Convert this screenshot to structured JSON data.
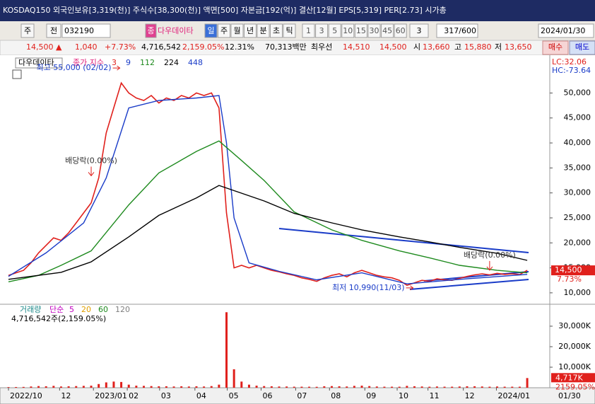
{
  "title_bar": {
    "text": "KOSDAQ150 외국인보유[3,319(천)] 주식수[38,300(천)] 액면[500] 자본금[192(억)] 결산[12월] EPS[5,319] PER[2.73] 시가총"
  },
  "toolbar": {
    "market": "주",
    "prev": "전",
    "code": "032190",
    "mode": "종",
    "name": "다우데이타",
    "periods": [
      "일",
      "주",
      "월",
      "년",
      "분",
      "초",
      "틱"
    ],
    "intervals": [
      "1",
      "3",
      "5",
      "10",
      "15",
      "30",
      "45",
      "60"
    ],
    "count": "3",
    "range": "317/600",
    "date": "2024/01/30"
  },
  "quote": {
    "items": [
      {
        "text": "14,500 ▲",
        "color": "#e0201c"
      },
      {
        "text": "1,040",
        "color": "#e0201c"
      },
      {
        "text": "+7.73%",
        "color": "#e0201c"
      },
      {
        "text": "4,716,542",
        "color": "#000000"
      },
      {
        "text": "2,159.05%",
        "color": "#e0201c"
      },
      {
        "text": "12.31%",
        "color": "#000000"
      },
      {
        "text": "70,313백만",
        "color": "#000000"
      },
      {
        "text": "최우선",
        "color": "#000000"
      },
      {
        "text": "14,510",
        "color": "#e0201c"
      },
      {
        "text": "14,500",
        "color": "#e0201c"
      },
      {
        "text": "시",
        "color": "#000000"
      },
      {
        "text": "13,660",
        "color": "#e0201c"
      },
      {
        "text": "고",
        "color": "#000000"
      },
      {
        "text": "15,880",
        "color": "#e0201c"
      },
      {
        "text": "저",
        "color": "#000000"
      },
      {
        "text": "13,650",
        "color": "#e0201c"
      }
    ],
    "buy": "매수",
    "sell": "매도"
  },
  "chart_data": [
    {
      "type": "line",
      "title": "다우데이타",
      "legend_title": "종가 지수",
      "xlim": [
        0,
        72
      ],
      "ylim": [
        8000,
        57000
      ],
      "yticks": [
        {
          "value": 10000,
          "label": "10,000"
        },
        {
          "value": 15000,
          "label": "15,000"
        },
        {
          "value": 20000,
          "label": "20,000"
        },
        {
          "value": 25000,
          "label": "25,000"
        },
        {
          "value": 30000,
          "label": "30,000"
        },
        {
          "value": 35000,
          "label": "35,000"
        },
        {
          "value": 40000,
          "label": "40,000"
        },
        {
          "value": 45000,
          "label": "45,000"
        },
        {
          "value": 50000,
          "label": "50,000"
        }
      ],
      "xticks": [
        {
          "value": 0,
          "label": "2022/10"
        },
        {
          "value": 6.8,
          "label": "12"
        },
        {
          "value": 11.3,
          "label": "2023/01"
        },
        {
          "value": 15.8,
          "label": "02"
        },
        {
          "value": 20.1,
          "label": "03"
        },
        {
          "value": 24.8,
          "label": "04"
        },
        {
          "value": 29.1,
          "label": "05"
        },
        {
          "value": 33.6,
          "label": "06"
        },
        {
          "value": 38.2,
          "label": "07"
        },
        {
          "value": 42.7,
          "label": "08"
        },
        {
          "value": 47.4,
          "label": "09"
        },
        {
          "value": 51.7,
          "label": "10"
        },
        {
          "value": 55.8,
          "label": "11"
        },
        {
          "value": 60.5,
          "label": "12"
        },
        {
          "value": 64.9,
          "label": "2024/01"
        }
      ],
      "last_x_label": "01/30",
      "series": [
        {
          "name": "3",
          "color": "#e0201c",
          "values": [
            13500,
            14000,
            14500,
            16000,
            18000,
            19500,
            21000,
            20500,
            22000,
            24000,
            26000,
            28000,
            33000,
            42000,
            47000,
            52000,
            50000,
            49000,
            48500,
            49500,
            48000,
            49000,
            48500,
            49500,
            49000,
            50000,
            49500,
            50000,
            47000,
            26000,
            15000,
            15500,
            15000,
            15500,
            15000,
            14500,
            14200,
            13800,
            13500,
            13000,
            12700,
            12300,
            13000,
            13500,
            13800,
            13200,
            14000,
            14500,
            14000,
            13500,
            13200,
            13000,
            12500,
            11500,
            12000,
            12500,
            12300,
            12800,
            12600,
            12500,
            12900,
            13300,
            13600,
            13800,
            13600,
            13900,
            13700,
            13800,
            13650,
            14500
          ]
        },
        {
          "name": "9",
          "color": "#1a3cc8",
          "x": [
            0,
            5,
            10,
            13,
            16,
            20,
            25,
            28,
            29,
            30,
            32,
            36,
            41,
            47,
            53,
            60,
            69
          ],
          "values": [
            13300,
            18000,
            24000,
            33000,
            47000,
            48500,
            49000,
            49500,
            40000,
            25000,
            16000,
            14300,
            12600,
            14000,
            11800,
            12700,
            13700
          ]
        },
        {
          "name": "112",
          "color": "#1e8a1e",
          "x": [
            0,
            4,
            7,
            11,
            16,
            20,
            25,
            28,
            31,
            34,
            38,
            43,
            47,
            52,
            56,
            60,
            65,
            69
          ],
          "values": [
            12200,
            13500,
            15500,
            18400,
            27600,
            34000,
            38300,
            40400,
            36500,
            32500,
            26200,
            22600,
            20500,
            18400,
            17000,
            15500,
            14500,
            14000
          ]
        },
        {
          "name": "224",
          "color": "#000000",
          "x": [
            0,
            7,
            11,
            16,
            20,
            25,
            28,
            34,
            38,
            43,
            47,
            52,
            56,
            60,
            65,
            69
          ],
          "values": [
            12700,
            14100,
            16200,
            21200,
            25500,
            29000,
            31500,
            28400,
            25900,
            24000,
            22600,
            21200,
            20200,
            19100,
            17900,
            16500
          ]
        },
        {
          "name": "448",
          "color": "#1a3cc8",
          "x": [],
          "values": []
        }
      ],
      "annotations": [
        {
          "text": "최고 55,000 (02/02)",
          "x": 15,
          "y": 55000,
          "side": "left"
        },
        {
          "text": "배당락(0.00%)",
          "x": 11,
          "y": 33000,
          "side": "top"
        },
        {
          "text": "배당락(0.00%)",
          "x": 64,
          "y": 14100,
          "side": "top"
        },
        {
          "text": "최저 10,990(11/03)",
          "x": 54,
          "y": 10990,
          "side": "left"
        }
      ],
      "lc_label": "LC:32.06",
      "hc_label": "HC:-73.64",
      "last_label": "14,500",
      "change_label": "7.73%"
    },
    {
      "type": "bar",
      "title": "거래량",
      "ma_title": "단순",
      "xlim": [
        0,
        72
      ],
      "ylim": [
        0,
        40000
      ],
      "yticks": [
        {
          "value": 10000,
          "label": "10,000K"
        },
        {
          "value": 20000,
          "label": "20,000K"
        },
        {
          "value": 30000,
          "label": "30,000K"
        }
      ],
      "ma_legend": [
        {
          "name": "5",
          "color": "#c000c0"
        },
        {
          "name": "20",
          "color": "#e0a000"
        },
        {
          "name": "60",
          "color": "#1e8a1e"
        },
        {
          "name": "120",
          "color": "#808080"
        }
      ],
      "summary": "4,716,542주(2,159.05%)",
      "color": "#e0201c",
      "values": [
        300,
        350,
        400,
        600,
        800,
        700,
        900,
        600,
        700,
        800,
        900,
        1000,
        1800,
        2600,
        3000,
        2800,
        1500,
        1000,
        900,
        800,
        700,
        700,
        600,
        700,
        600,
        700,
        600,
        800,
        1500,
        36800,
        9000,
        3000,
        1500,
        1000,
        800,
        700,
        600,
        600,
        500,
        500,
        500,
        450,
        700,
        800,
        700,
        600,
        900,
        1000,
        800,
        600,
        500,
        500,
        500,
        900,
        700,
        600,
        500,
        600,
        500,
        500,
        600,
        700,
        700,
        600,
        500,
        600,
        500,
        500,
        500,
        4717
      ],
      "value_labels_last": "4,717K",
      "change_label": "2159.05%"
    }
  ]
}
